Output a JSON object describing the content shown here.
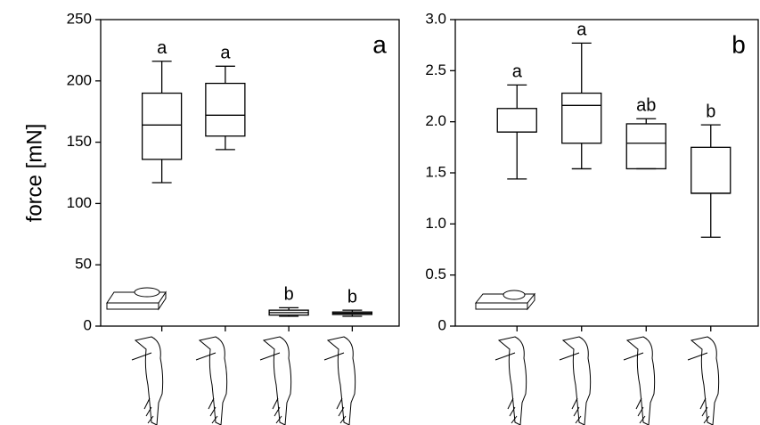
{
  "chart_data": [
    {
      "type": "box",
      "ylabel": "force [mN]",
      "panel_label": "a",
      "categories": [
        null,
        null,
        null,
        null
      ],
      "ylim": [
        0,
        250
      ],
      "yticks": [
        0,
        50,
        100,
        150,
        200,
        250
      ],
      "boxes": {
        "min": [
          117,
          144,
          8,
          8
        ],
        "q1": [
          136,
          155,
          9,
          9.5
        ],
        "median": [
          164,
          172,
          11,
          10.5
        ],
        "q3": [
          190,
          198,
          13,
          11.5
        ],
        "max": [
          216,
          212,
          15,
          13
        ]
      },
      "letters": [
        "a",
        "a",
        "b",
        "b"
      ]
    },
    {
      "type": "box",
      "panel_label": "b",
      "categories": [
        null,
        null,
        null,
        null
      ],
      "ylim": [
        0,
        3
      ],
      "yticks": [
        0,
        0.5,
        {
          "value": 1,
          "label": "1.0"
        },
        1.5,
        {
          "value": 2,
          "label": "2.0"
        },
        2.5,
        {
          "value": 3,
          "label": "3.0"
        }
      ],
      "boxes": {
        "min": [
          1.44,
          1.54,
          1.54,
          0.87
        ],
        "q1": [
          1.9,
          1.79,
          1.54,
          1.3
        ],
        "median": [
          1.9,
          2.16,
          1.79,
          1.3
        ],
        "q3": [
          2.13,
          2.28,
          1.98,
          1.75
        ],
        "max": [
          2.36,
          2.77,
          2.03,
          1.97
        ]
      },
      "letters": [
        "a",
        "a",
        "ab",
        "b"
      ]
    }
  ]
}
